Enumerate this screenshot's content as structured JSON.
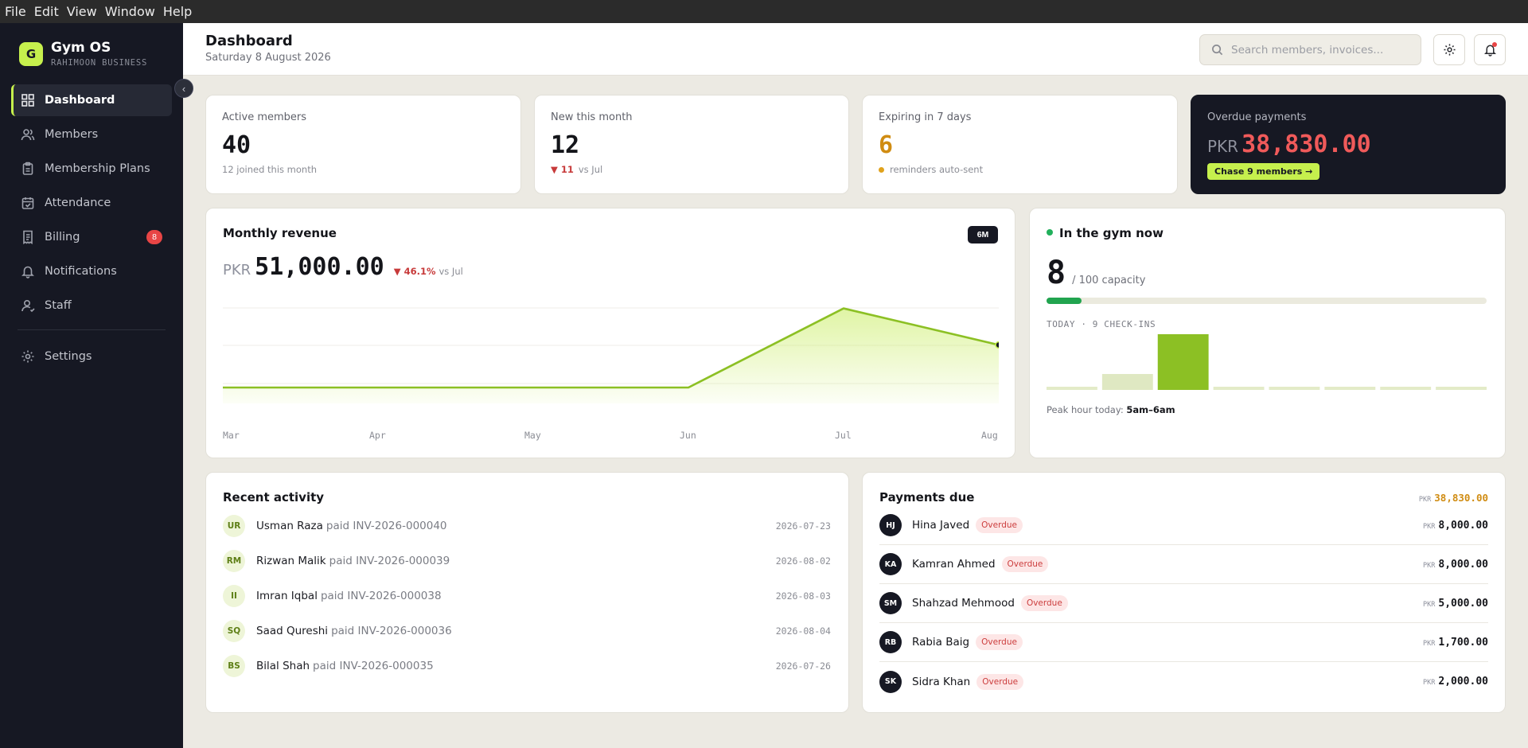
{
  "menubar": {
    "items": [
      "File",
      "Edit",
      "View",
      "Window",
      "Help"
    ]
  },
  "brand": {
    "logo_letter": "G",
    "name": "Gym OS",
    "subtitle": "RAHIMOON BUSINESS"
  },
  "sidebar": {
    "items": [
      {
        "label": "Dashboard",
        "icon": "grid-icon",
        "active": true
      },
      {
        "label": "Members",
        "icon": "users-icon"
      },
      {
        "label": "Membership Plans",
        "icon": "clipboard-icon"
      },
      {
        "label": "Attendance",
        "icon": "calendar-check-icon"
      },
      {
        "label": "Billing",
        "icon": "receipt-icon",
        "badge": "8"
      },
      {
        "label": "Notifications",
        "icon": "bell-icon"
      },
      {
        "label": "Staff",
        "icon": "user-icon"
      },
      {
        "label": "Settings",
        "icon": "gear-icon"
      }
    ]
  },
  "header": {
    "title": "Dashboard",
    "date": "Saturday 8 August 2026",
    "search_placeholder": "Search members, invoices..."
  },
  "stats": {
    "active": {
      "label": "Active members",
      "value": "40",
      "sub": "12 joined this month"
    },
    "new": {
      "label": "New this month",
      "value": "12",
      "delta": "▼ 11",
      "delta_note": "vs Jul"
    },
    "expiring": {
      "label": "Expiring in 7 days",
      "value": "6",
      "sub": "reminders auto-sent"
    },
    "overdue": {
      "label": "Overdue payments",
      "currency": "PKR",
      "amount": "38,830.00",
      "cta": "Chase 9 members →"
    }
  },
  "revenue": {
    "title": "Monthly revenue",
    "range_button": "6M",
    "currency": "PKR",
    "total": "51,000.00",
    "delta": "▼ 46.1%",
    "delta_note": "vs Jul"
  },
  "chart_data": {
    "type": "area",
    "categories": [
      "Mar",
      "Apr",
      "May",
      "Jun",
      "Jul",
      "Aug"
    ],
    "values": [
      0,
      0,
      0,
      0,
      94700,
      51000
    ],
    "title": "Monthly revenue",
    "grid": true
  },
  "gym_now": {
    "title": "In the gym now",
    "count": "8",
    "capacity_text": "/ 100 capacity",
    "occupancy": 0.08,
    "today_label": "TODAY · 9 CHECK-INS",
    "hourly_checkins": [
      0,
      2,
      7,
      0,
      0,
      0,
      0,
      0
    ],
    "peak_label": "Peak hour today:",
    "peak_value": "5am–6am"
  },
  "activity": {
    "title": "Recent activity",
    "rows": [
      {
        "initials": "UR",
        "name": "Usman Raza",
        "desc": "paid INV-2026-000040",
        "date": "2026-07-23"
      },
      {
        "initials": "RM",
        "name": "Rizwan Malik",
        "desc": "paid INV-2026-000039",
        "date": "2026-08-02"
      },
      {
        "initials": "II",
        "name": "Imran Iqbal",
        "desc": "paid INV-2026-000038",
        "date": "2026-08-03"
      },
      {
        "initials": "SQ",
        "name": "Saad Qureshi",
        "desc": "paid INV-2026-000036",
        "date": "2026-08-04"
      },
      {
        "initials": "BS",
        "name": "Bilal Shah",
        "desc": "paid INV-2026-000035",
        "date": "2026-07-26"
      }
    ]
  },
  "payments": {
    "title": "Payments due",
    "currency": "PKR",
    "total": "38,830.00",
    "rows": [
      {
        "initials": "HJ",
        "name": "Hina Javed",
        "status": "Overdue",
        "currency": "PKR",
        "amount": "8,000.00"
      },
      {
        "initials": "KA",
        "name": "Kamran Ahmed",
        "status": "Overdue",
        "currency": "PKR",
        "amount": "8,000.00"
      },
      {
        "initials": "SM",
        "name": "Shahzad Mehmood",
        "status": "Overdue",
        "currency": "PKR",
        "amount": "5,000.00"
      },
      {
        "initials": "RB",
        "name": "Rabia Baig",
        "status": "Overdue",
        "currency": "PKR",
        "amount": "1,700.00"
      },
      {
        "initials": "SK",
        "name": "Sidra Khan",
        "status": "Overdue",
        "currency": "PKR",
        "amount": "2,000.00"
      }
    ]
  },
  "colors": {
    "accent": "#c6f04d",
    "sidebar": "#161823",
    "danger": "#e84545",
    "warning": "#d08c12",
    "success": "#21a44f",
    "line": "#8cc024"
  }
}
